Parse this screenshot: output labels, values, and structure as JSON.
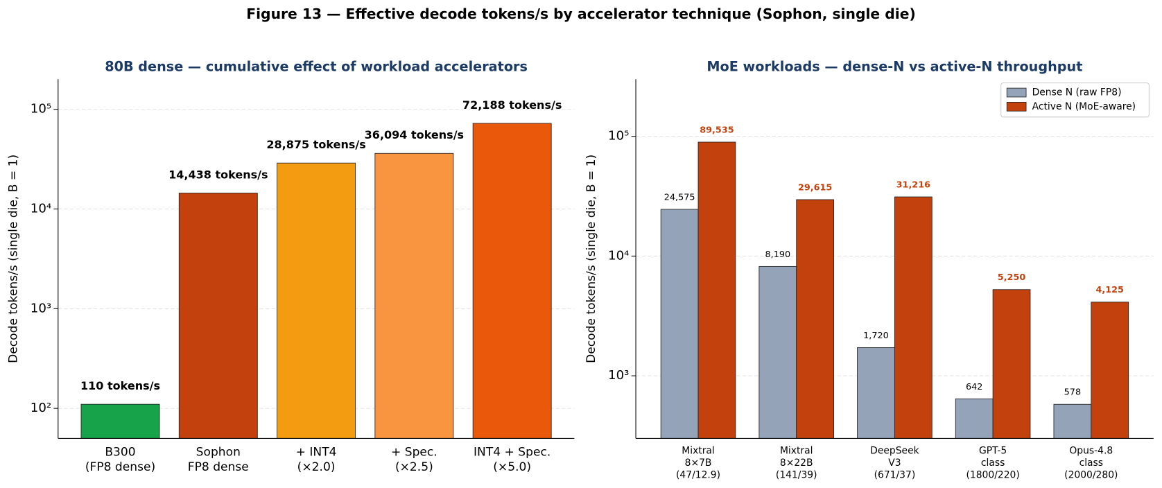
{
  "title": "Figure 13 — Effective decode tokens/s by accelerator technique (Sophon, single die)",
  "chart_data": [
    {
      "type": "bar",
      "title": "80B dense — cumulative effect of workload accelerators",
      "y_label": "Decode tokens/s (single die, B = 1)",
      "categories": [
        "B300\n(FP8 dense)",
        "Sophon\nFP8 dense",
        "+ INT4\n(×2.0)",
        "+ Spec.\n(×2.5)",
        "INT4 + Spec.\n(×5.0)"
      ],
      "values": [
        110,
        14438,
        28875,
        36094,
        72188
      ],
      "value_labels": [
        "110 tokens/s",
        "14,438 tokens/s",
        "28,875 tokens/s",
        "36,094 tokens/s",
        "72,188 tokens/s"
      ],
      "colors": [
        "#16a34a",
        "#c2410c",
        "#f39c12",
        "#f99440",
        "#ea580c"
      ],
      "log_scale": true,
      "ylim": [
        50,
        200000
      ],
      "yticks": [
        {
          "value": 100,
          "label": "10²"
        },
        {
          "value": 1000,
          "label": "10³"
        },
        {
          "value": 10000,
          "label": "10⁴"
        },
        {
          "value": 100000,
          "label": "10⁵"
        }
      ],
      "grid": true
    },
    {
      "type": "grouped_bar",
      "title": "MoE workloads — dense-N vs active-N throughput",
      "y_label": "Decode tokens/s (single die, B = 1)",
      "categories": [
        "Mixtral\n8×7B\n(47/12.9)",
        "Mixtral\n8×22B\n(141/39)",
        "DeepSeek\nV3\n(671/37)",
        "GPT-5\nclass\n(1800/220)",
        "Opus-4.8\nclass\n(2000/280)"
      ],
      "series": [
        {
          "name": "Dense N (raw FP8)",
          "color": "#94a3b8",
          "values": [
            24575,
            8190,
            1720,
            642,
            578
          ],
          "value_labels": [
            "24,575",
            "8,190",
            "1,720",
            "642",
            "578"
          ]
        },
        {
          "name": "Active N (MoE-aware)",
          "color": "#c2410c",
          "values": [
            89535,
            29615,
            31216,
            5250,
            4125
          ],
          "value_labels": [
            "89,535",
            "29,615",
            "31,216",
            "5,250",
            "4,125"
          ]
        }
      ],
      "log_scale": true,
      "ylim": [
        300,
        300000
      ],
      "yticks": [
        {
          "value": 1000,
          "label": "10³"
        },
        {
          "value": 10000,
          "label": "10⁴"
        },
        {
          "value": 100000,
          "label": "10⁵"
        }
      ],
      "grid": true,
      "legend": "upper right"
    }
  ]
}
